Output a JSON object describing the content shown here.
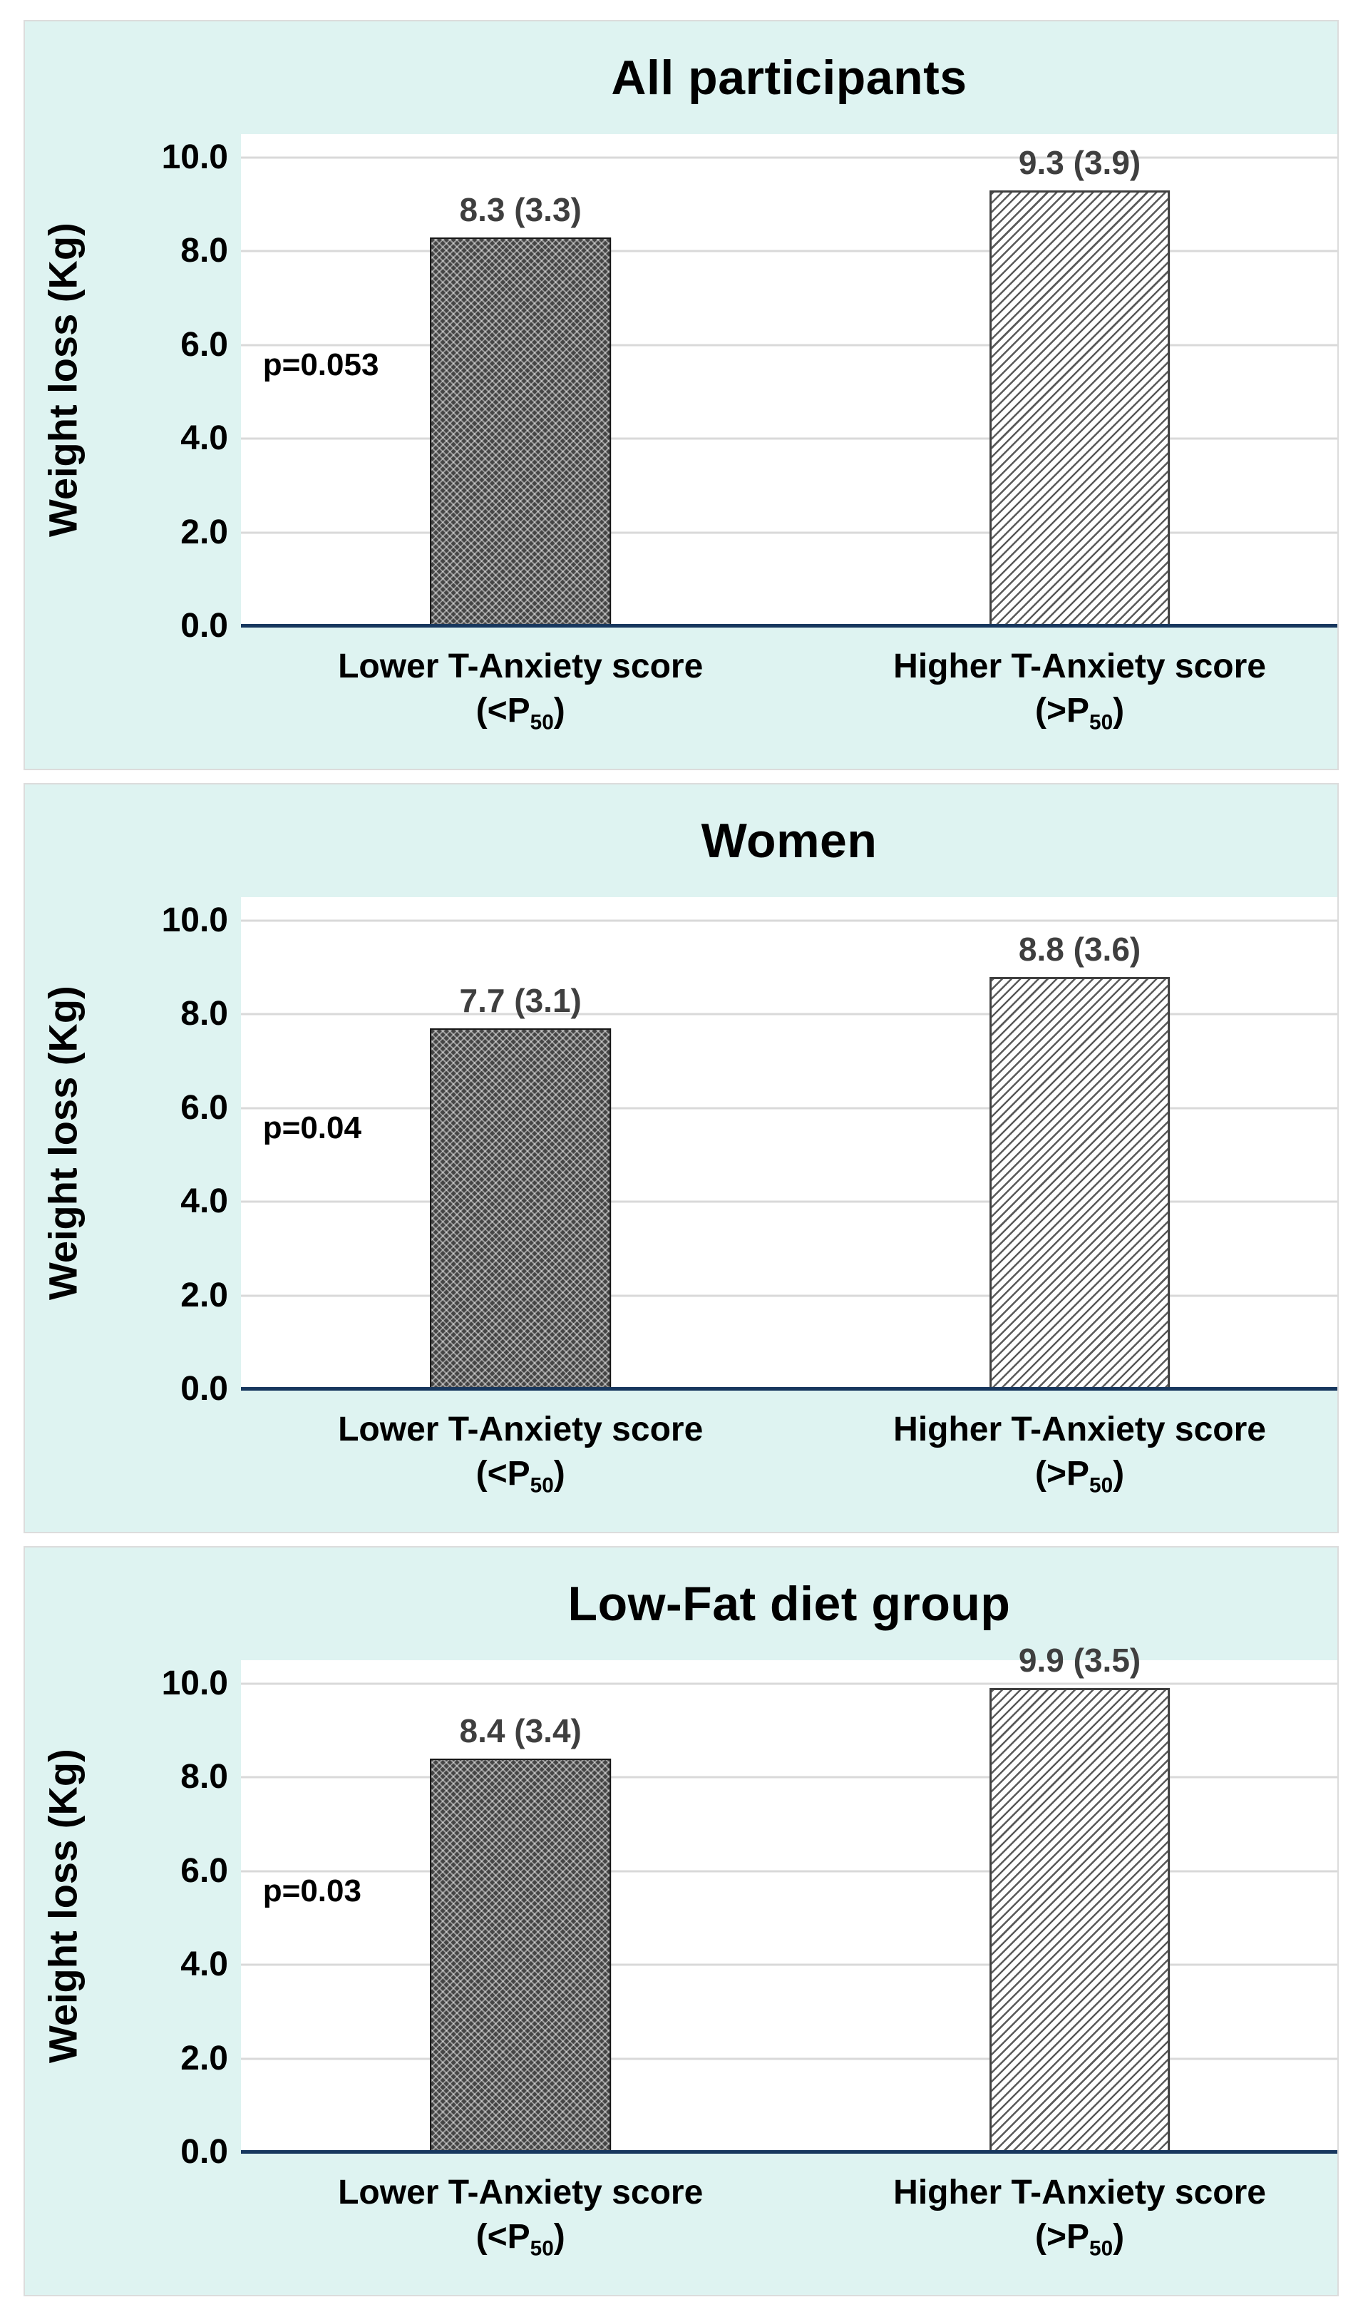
{
  "shared": {
    "y_axis_title": "Weight loss (Kg)",
    "yticks": [
      {
        "value": 10,
        "label": "10.0"
      },
      {
        "value": 8,
        "label": "8.0"
      },
      {
        "value": 6,
        "label": "6.0"
      },
      {
        "value": 4,
        "label": "4.0"
      },
      {
        "value": 2,
        "label": "2.0"
      },
      {
        "value": 0,
        "label": "0.0"
      }
    ],
    "categories": [
      {
        "line1": "Lower T-Anxiety score",
        "line2_pre": "(<P",
        "line2_sub": "50",
        "line2_post": ")"
      },
      {
        "line1": "Higher T-Anxiety score",
        "line2_pre": "(>P",
        "line2_sub": "50",
        "line2_post": ")"
      }
    ],
    "colors": {
      "panel_background": "#def3f1",
      "plot_background": "#ffffff",
      "gridline": "#d9d9d9",
      "axis_line": "#17375e",
      "bar_lower_fill": "#454545",
      "bar_higher_fill": "#ffffff",
      "bar_hatch": "#5a5a5a",
      "value_label": "#3f3f3f"
    },
    "bar_styles": [
      "dark-crosshatch-pattern",
      "light-diagonal-stripe-pattern"
    ]
  },
  "chart_data": [
    {
      "type": "bar",
      "title": "All participants",
      "categories": [
        "Lower T-Anxiety score (<P50)",
        "Higher T-Anxiety score (>P50)"
      ],
      "values": [
        8.3,
        9.3
      ],
      "sd": [
        3.3,
        3.9
      ],
      "bar_labels": [
        "8.3 (3.3)",
        "9.3 (3.9)"
      ],
      "p_label": "p=0.053",
      "xlabel": "",
      "ylabel": "Weight loss (Kg)",
      "ylim": [
        0,
        10.5
      ],
      "yticks": [
        0,
        2,
        4,
        6,
        8,
        10
      ],
      "grid": true,
      "legend": false
    },
    {
      "type": "bar",
      "title": "Women",
      "categories": [
        "Lower T-Anxiety score (<P50)",
        "Higher T-Anxiety score (>P50)"
      ],
      "values": [
        7.7,
        8.8
      ],
      "sd": [
        3.1,
        3.6
      ],
      "bar_labels": [
        "7.7 (3.1)",
        "8.8 (3.6)"
      ],
      "p_label": "p=0.04",
      "xlabel": "",
      "ylabel": "Weight loss (Kg)",
      "ylim": [
        0,
        10.5
      ],
      "yticks": [
        0,
        2,
        4,
        6,
        8,
        10
      ],
      "grid": true,
      "legend": false
    },
    {
      "type": "bar",
      "title": "Low-Fat diet group",
      "categories": [
        "Lower T-Anxiety score (<P50)",
        "Higher T-Anxiety score (>P50)"
      ],
      "values": [
        8.4,
        9.9
      ],
      "sd": [
        3.4,
        3.5
      ],
      "bar_labels": [
        "8.4 (3.4)",
        "9.9 (3.5)"
      ],
      "p_label": "p=0.03",
      "xlabel": "",
      "ylabel": "Weight loss (Kg)",
      "ylim": [
        0,
        10.5
      ],
      "yticks": [
        0,
        2,
        4,
        6,
        8,
        10
      ],
      "grid": true,
      "legend": false
    }
  ]
}
